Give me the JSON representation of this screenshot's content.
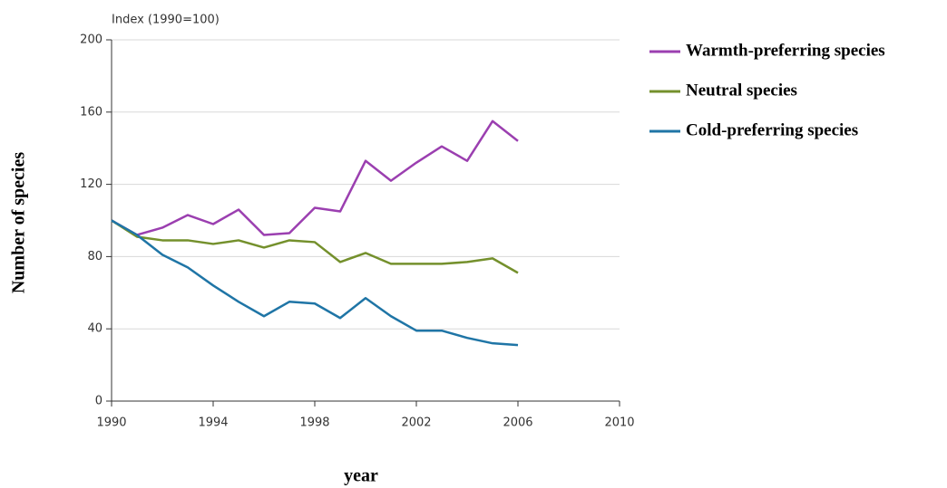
{
  "chart_data": {
    "type": "line",
    "annotation": "Index (1990=100)",
    "x_label": "year",
    "y_label": "Number of species",
    "x": [
      1990,
      1991,
      1992,
      1993,
      1994,
      1995,
      1996,
      1997,
      1998,
      1999,
      2000,
      2001,
      2002,
      2003,
      2004,
      2005,
      2006
    ],
    "series": [
      {
        "name": "Warmth-preferring species",
        "color": "#9b3fb0",
        "values": [
          100,
          92,
          96,
          103,
          98,
          106,
          92,
          93,
          107,
          105,
          133,
          122,
          132,
          141,
          133,
          155,
          144
        ]
      },
      {
        "name": "Neutral species",
        "color": "#74902c",
        "values": [
          100,
          91,
          89,
          89,
          87,
          89,
          85,
          89,
          88,
          77,
          82,
          76,
          76,
          76,
          77,
          79,
          71
        ]
      },
      {
        "name": "Cold-preferring species",
        "color": "#1f75a6",
        "values": [
          100,
          92,
          81,
          74,
          64,
          55,
          47,
          55,
          54,
          46,
          57,
          47,
          39,
          39,
          35,
          32,
          31
        ]
      }
    ],
    "xlim": [
      1990,
      2010
    ],
    "xticks": [
      1990,
      1994,
      1998,
      2002,
      2006,
      2010
    ],
    "ylim": [
      0,
      200
    ],
    "yticks": [
      0,
      40,
      80,
      120,
      160,
      200
    ],
    "grid": true,
    "legend": "right"
  }
}
